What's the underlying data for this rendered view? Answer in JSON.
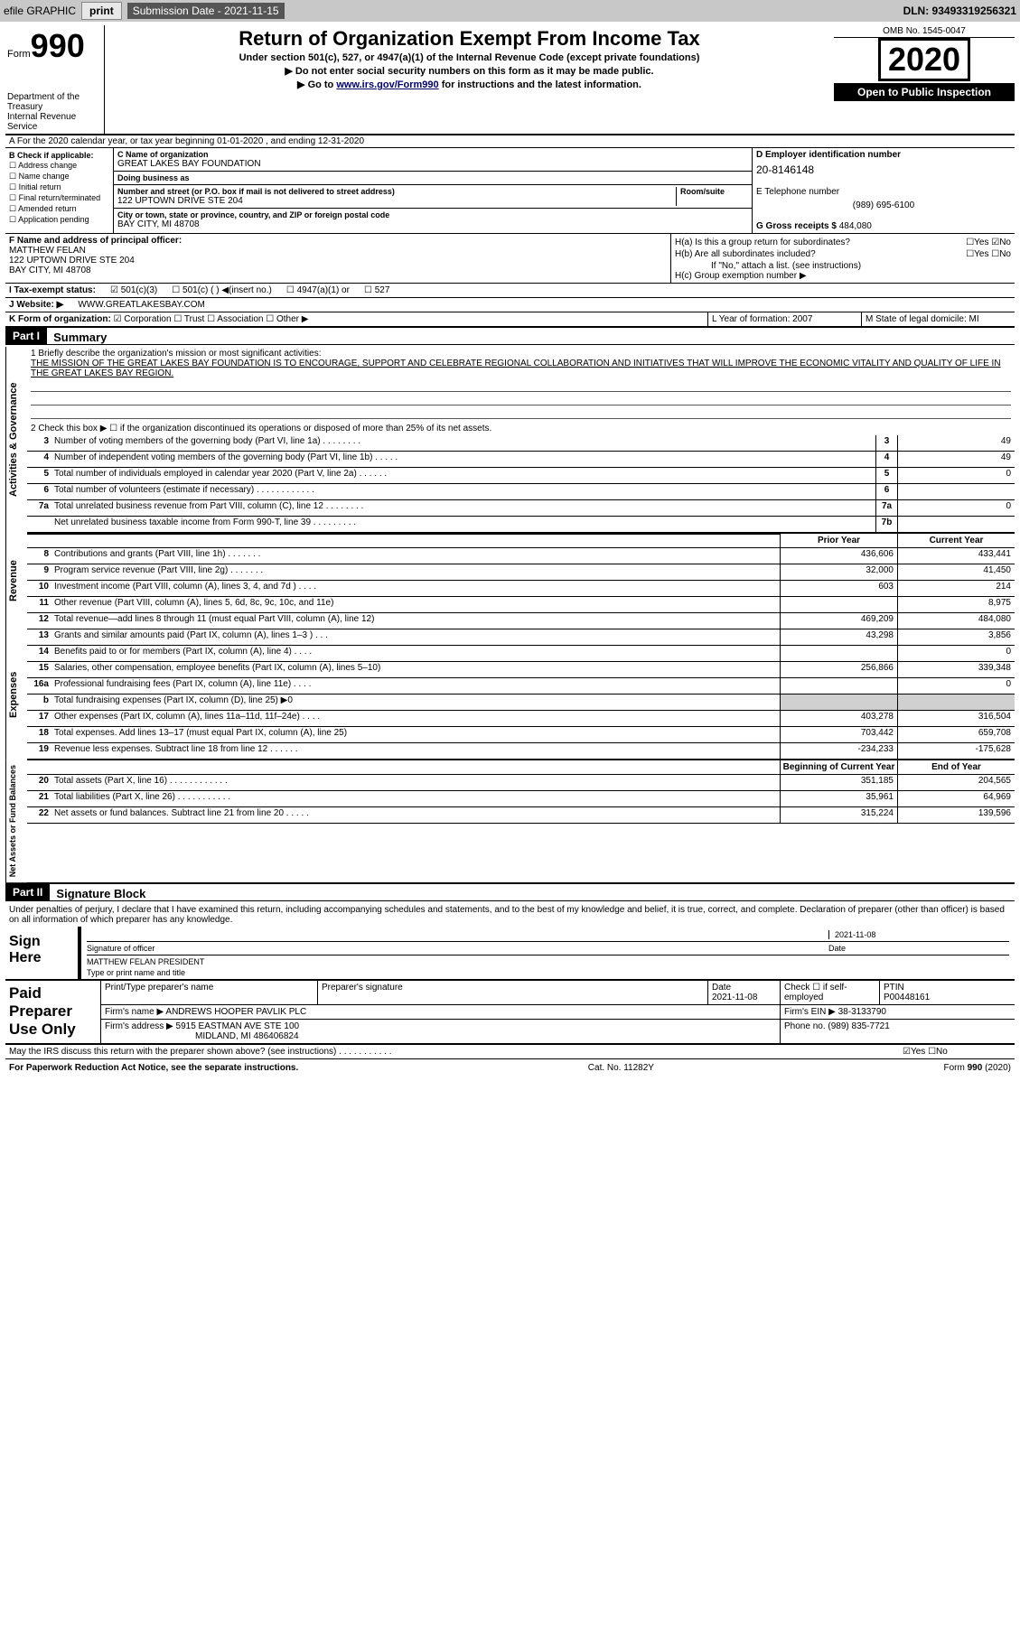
{
  "topbar": {
    "efile": "efile GRAPHIC",
    "print": "print",
    "sub_lbl": "Submission Date - ",
    "sub_date": "2021-11-15",
    "dln": "DLN: 93493319256321"
  },
  "header": {
    "form_word": "Form",
    "form_num": "990",
    "dept": "Department of the Treasury\nInternal Revenue Service",
    "title": "Return of Organization Exempt From Income Tax",
    "sub1": "Under section 501(c), 527, or 4947(a)(1) of the Internal Revenue Code (except private foundations)",
    "sub2": "▶ Do not enter social security numbers on this form as it may be made public.",
    "sub3_pre": "▶ Go to ",
    "sub3_link": "www.irs.gov/Form990",
    "sub3_post": " for instructions and the latest information.",
    "omb": "OMB No. 1545-0047",
    "year": "2020",
    "open": "Open to Public Inspection"
  },
  "row_a": "A For the 2020 calendar year, or tax year beginning 01-01-2020   , and ending 12-31-2020",
  "box_b": {
    "title": "B Check if applicable:",
    "items": [
      "☐ Address change",
      "☐ Name change",
      "☐ Initial return",
      "☐ Final return/terminated",
      "☐ Amended return",
      "☐ Application pending"
    ]
  },
  "box_c": {
    "name_lbl": "C Name of organization",
    "name": "GREAT LAKES BAY FOUNDATION",
    "dba_lbl": "Doing business as",
    "dba": "",
    "addr_lbl": "Number and street (or P.O. box if mail is not delivered to street address)",
    "room_lbl": "Room/suite",
    "addr": "122 UPTOWN DRIVE STE 204",
    "city_lbl": "City or town, state or province, country, and ZIP or foreign postal code",
    "city": "BAY CITY, MI  48708"
  },
  "box_d": {
    "ein_lbl": "D Employer identification number",
    "ein": "20-8146148",
    "tel_lbl": "E Telephone number",
    "tel": "(989) 695-6100",
    "gross_lbl": "G Gross receipts $",
    "gross": "484,080"
  },
  "box_f": {
    "lbl": "F Name and address of principal officer:",
    "name": "MATTHEW FELAN",
    "addr1": "122 UPTOWN DRIVE STE 204",
    "addr2": "BAY CITY, MI  48708"
  },
  "box_h": {
    "ha_lbl": "H(a)  Is this a group return for subordinates?",
    "ha_yes": "☐Yes",
    "ha_no": "☑No",
    "hb_lbl": "H(b)  Are all subordinates included?",
    "hb_yes": "☐Yes",
    "hb_no": "☐No",
    "hb_note": "If \"No,\" attach a list. (see instructions)",
    "hc_lbl": "H(c)  Group exemption number ▶"
  },
  "row_i": {
    "lbl": "I   Tax-exempt status:",
    "opts": [
      "☑ 501(c)(3)",
      "☐ 501(c) (  ) ◀(insert no.)",
      "☐ 4947(a)(1) or",
      "☐ 527"
    ]
  },
  "row_j": {
    "lbl": "J   Website: ▶",
    "val": "WWW.GREATLAKESBAY.COM"
  },
  "row_k": {
    "lbl": "K Form of organization:",
    "opts": [
      "☑ Corporation",
      "☐ Trust",
      "☐ Association",
      "☐ Other ▶"
    ]
  },
  "row_lm": {
    "l": "L Year of formation: 2007",
    "m": "M State of legal domicile: MI"
  },
  "part1": {
    "num": "Part I",
    "title": "Summary"
  },
  "mission": {
    "lbl": "1   Briefly describe the organization's mission or most significant activities:",
    "text": "THE MISSION OF THE GREAT LAKES BAY FOUNDATION IS TO ENCOURAGE, SUPPORT AND CELEBRATE REGIONAL COLLABORATION AND INITIATIVES THAT WILL IMPROVE THE ECONOMIC VITALITY AND QUALITY OF LIFE IN THE GREAT LAKES BAY REGION."
  },
  "line2": "2   Check this box ▶ ☐  if the organization discontinued its operations or disposed of more than 25% of its net assets.",
  "gov_lines": [
    {
      "n": "3",
      "d": "Number of voting members of the governing body (Part VI, line 1a)  .   .   .   .   .   .   .   .",
      "b": "3",
      "v": "49"
    },
    {
      "n": "4",
      "d": "Number of independent voting members of the governing body (Part VI, line 1b)  .   .   .   .   .",
      "b": "4",
      "v": "49"
    },
    {
      "n": "5",
      "d": "Total number of individuals employed in calendar year 2020 (Part V, line 2a)  .   .   .   .   .   .",
      "b": "5",
      "v": "0"
    },
    {
      "n": "6",
      "d": "Total number of volunteers (estimate if necessary)  .   .   .   .   .   .   .   .   .   .   .   .",
      "b": "6",
      "v": ""
    },
    {
      "n": "7a",
      "d": "Total unrelated business revenue from Part VIII, column (C), line 12  .   .   .   .   .   .   .   .",
      "b": "7a",
      "v": "0"
    },
    {
      "n": "",
      "d": "Net unrelated business taxable income from Form 990-T, line 39  .   .   .   .   .   .   .   .   .",
      "b": "7b",
      "v": ""
    }
  ],
  "col_hdrs": {
    "prior": "Prior Year",
    "current": "Current Year",
    "boy": "Beginning of Current Year",
    "eoy": "End of Year"
  },
  "rev_lines": [
    {
      "n": "8",
      "d": "Contributions and grants (Part VIII, line 1h)  .   .   .   .   .   .   .",
      "p": "436,606",
      "c": "433,441"
    },
    {
      "n": "9",
      "d": "Program service revenue (Part VIII, line 2g)  .   .   .   .   .   .   .",
      "p": "32,000",
      "c": "41,450"
    },
    {
      "n": "10",
      "d": "Investment income (Part VIII, column (A), lines 3, 4, and 7d )  .   .   .   .",
      "p": "603",
      "c": "214"
    },
    {
      "n": "11",
      "d": "Other revenue (Part VIII, column (A), lines 5, 6d, 8c, 9c, 10c, and 11e)",
      "p": "",
      "c": "8,975"
    },
    {
      "n": "12",
      "d": "Total revenue—add lines 8 through 11 (must equal Part VIII, column (A), line 12)",
      "p": "469,209",
      "c": "484,080"
    }
  ],
  "exp_lines": [
    {
      "n": "13",
      "d": "Grants and similar amounts paid (Part IX, column (A), lines 1–3 )  .   .   .",
      "p": "43,298",
      "c": "3,856"
    },
    {
      "n": "14",
      "d": "Benefits paid to or for members (Part IX, column (A), line 4)  .   .   .   .",
      "p": "",
      "c": "0"
    },
    {
      "n": "15",
      "d": "Salaries, other compensation, employee benefits (Part IX, column (A), lines 5–10)",
      "p": "256,866",
      "c": "339,348"
    },
    {
      "n": "16a",
      "d": "Professional fundraising fees (Part IX, column (A), line 11e)  .   .   .   .",
      "p": "",
      "c": "0"
    },
    {
      "n": "b",
      "d": "Total fundraising expenses (Part IX, column (D), line 25) ▶0",
      "p": "shade",
      "c": "shade"
    },
    {
      "n": "17",
      "d": "Other expenses (Part IX, column (A), lines 11a–11d, 11f–24e)  .   .   .   .",
      "p": "403,278",
      "c": "316,504"
    },
    {
      "n": "18",
      "d": "Total expenses. Add lines 13–17 (must equal Part IX, column (A), line 25)",
      "p": "703,442",
      "c": "659,708"
    },
    {
      "n": "19",
      "d": "Revenue less expenses. Subtract line 18 from line 12  .   .   .   .   .   .",
      "p": "-234,233",
      "c": "-175,628"
    }
  ],
  "na_lines": [
    {
      "n": "20",
      "d": "Total assets (Part X, line 16)  .   .   .   .   .   .   .   .   .   .   .   .",
      "p": "351,185",
      "c": "204,565"
    },
    {
      "n": "21",
      "d": "Total liabilities (Part X, line 26)  .   .   .   .   .   .   .   .   .   .   .",
      "p": "35,961",
      "c": "64,969"
    },
    {
      "n": "22",
      "d": "Net assets or fund balances. Subtract line 21 from line 20  .   .   .   .   .",
      "p": "315,224",
      "c": "139,596"
    }
  ],
  "side_labels": {
    "gov": "Activities & Governance",
    "rev": "Revenue",
    "exp": "Expenses",
    "na": "Net Assets or Fund Balances"
  },
  "part2": {
    "num": "Part II",
    "title": "Signature Block"
  },
  "sig_decl": "Under penalties of perjury, I declare that I have examined this return, including accompanying schedules and statements, and to the best of my knowledge and belief, it is true, correct, and complete. Declaration of preparer (other than officer) is based on all information of which preparer has any knowledge.",
  "sign": {
    "lbl": "Sign Here",
    "sig_lbl": "Signature of officer",
    "date_lbl": "Date",
    "date": "2021-11-08",
    "name": "MATTHEW FELAN  PRESIDENT",
    "name_lbl": "Type or print name and title"
  },
  "prep": {
    "lbl": "Paid Preparer Use Only",
    "h_name": "Print/Type preparer's name",
    "h_sig": "Preparer's signature",
    "h_date": "Date",
    "h_check": "Check ☐ if self-employed",
    "h_ptin": "PTIN",
    "date": "2021-11-08",
    "ptin": "P00448161",
    "firm_lbl": "Firm's name   ▶",
    "firm": "ANDREWS HOOPER PAVLIK PLC",
    "ein_lbl": "Firm's EIN ▶",
    "ein": "38-3133790",
    "addr_lbl": "Firm's address ▶",
    "addr1": "5915 EASTMAN AVE STE 100",
    "addr2": "MIDLAND, MI  486406824",
    "phone_lbl": "Phone no.",
    "phone": "(989) 835-7721"
  },
  "discuss": {
    "q": "May the IRS discuss this return with the preparer shown above? (see instructions)  .   .   .   .   .   .   .   .   .   .   .",
    "yes": "☑Yes",
    "no": "☐No"
  },
  "footer": {
    "pra": "For Paperwork Reduction Act Notice, see the separate instructions.",
    "cat": "Cat. No. 11282Y",
    "form": "Form 990 (2020)"
  }
}
